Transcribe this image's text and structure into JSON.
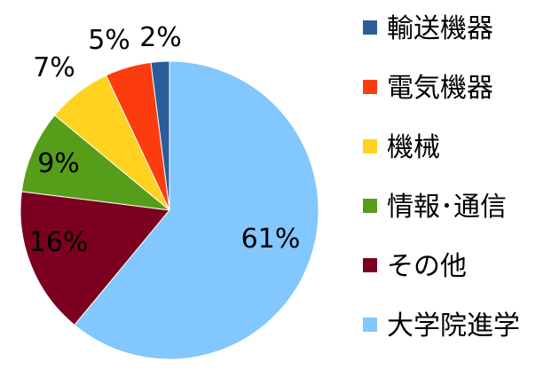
{
  "chart_data": {
    "type": "pie",
    "title": "",
    "legend_position": "right",
    "slices": [
      {
        "label": "輸送機器",
        "value": 2,
        "value_label": "2%",
        "color": "#2a5d9a"
      },
      {
        "label": "電気機器",
        "value": 5,
        "value_label": "5%",
        "color": "#fd3c0e"
      },
      {
        "label": "機械",
        "value": 7,
        "value_label": "7%",
        "color": "#ffd21f"
      },
      {
        "label": "情報･通信",
        "value": 9,
        "value_label": "9%",
        "color": "#569d1a"
      },
      {
        "label": "その他",
        "value": 16,
        "value_label": "16%",
        "color": "#7c0020"
      },
      {
        "label": "大学院進学",
        "value": 61,
        "value_label": "61%",
        "color": "#82c7fd"
      }
    ]
  }
}
